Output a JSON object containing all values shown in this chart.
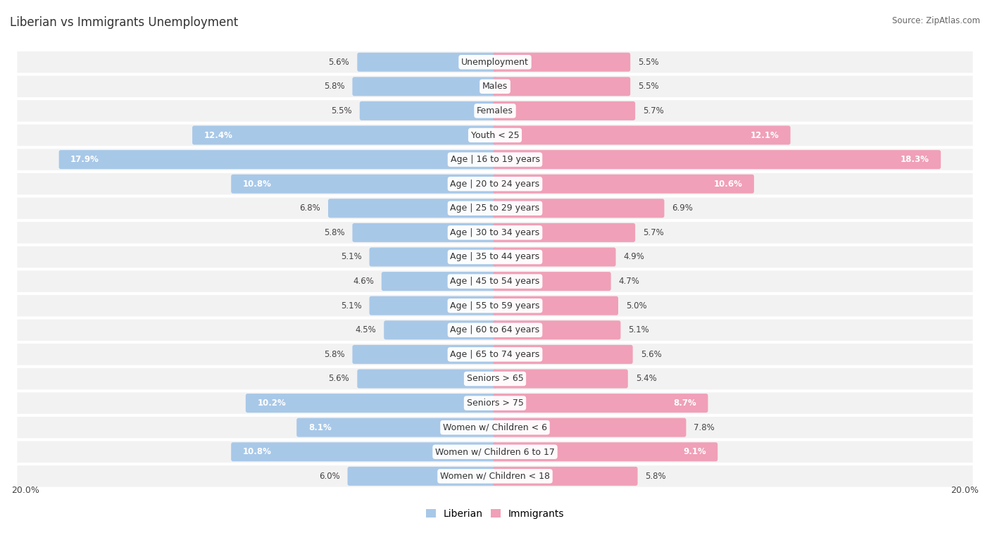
{
  "title": "Liberian vs Immigrants Unemployment",
  "source": "Source: ZipAtlas.com",
  "categories": [
    "Unemployment",
    "Males",
    "Females",
    "Youth < 25",
    "Age | 16 to 19 years",
    "Age | 20 to 24 years",
    "Age | 25 to 29 years",
    "Age | 30 to 34 years",
    "Age | 35 to 44 years",
    "Age | 45 to 54 years",
    "Age | 55 to 59 years",
    "Age | 60 to 64 years",
    "Age | 65 to 74 years",
    "Seniors > 65",
    "Seniors > 75",
    "Women w/ Children < 6",
    "Women w/ Children 6 to 17",
    "Women w/ Children < 18"
  ],
  "liberian": [
    5.6,
    5.8,
    5.5,
    12.4,
    17.9,
    10.8,
    6.8,
    5.8,
    5.1,
    4.6,
    5.1,
    4.5,
    5.8,
    5.6,
    10.2,
    8.1,
    10.8,
    6.0
  ],
  "immigrants": [
    5.5,
    5.5,
    5.7,
    12.1,
    18.3,
    10.6,
    6.9,
    5.7,
    4.9,
    4.7,
    5.0,
    5.1,
    5.6,
    5.4,
    8.7,
    7.8,
    9.1,
    5.8
  ],
  "liberian_color": "#a8c8e8",
  "immigrants_color": "#f0a0b8",
  "bg_color": "#ffffff",
  "row_bg_even": "#f5f5f5",
  "row_bg_odd": "#ebebeb",
  "axis_max": 20.0,
  "bar_height": 0.62,
  "label_fontsize": 9.0,
  "value_fontsize": 8.5,
  "title_fontsize": 12
}
